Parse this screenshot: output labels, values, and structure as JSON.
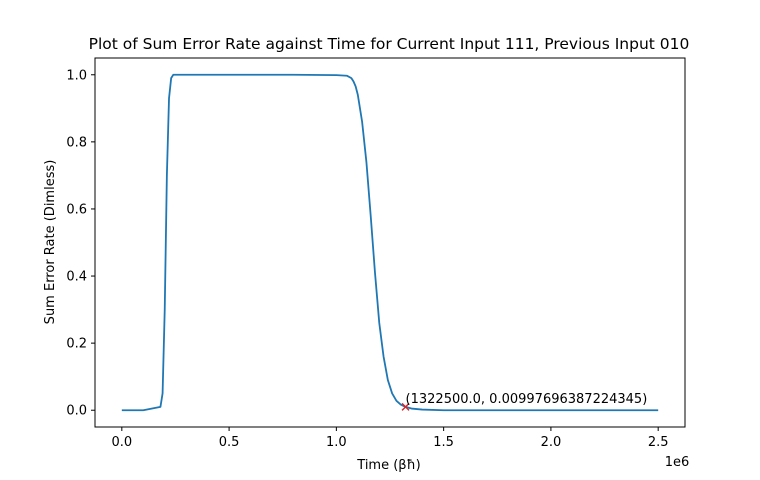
{
  "chart_data": {
    "type": "line",
    "title": "Plot of Sum Error Rate against Time for Current Input 111, Previous Input 010",
    "xlabel": "Time (βħ)",
    "ylabel": "Sum Error Rate (Dimless)",
    "x_offset_label": "1e6",
    "x_scale": 1000000,
    "xlim": [
      -125000,
      2625000
    ],
    "ylim": [
      -0.05,
      1.05
    ],
    "xticks": [
      0,
      500000,
      1000000,
      1500000,
      2000000,
      2500000
    ],
    "xtick_labels": [
      "0.0",
      "0.5",
      "1.0",
      "1.5",
      "2.0",
      "2.5"
    ],
    "yticks": [
      0.0,
      0.2,
      0.4,
      0.6,
      0.8,
      1.0
    ],
    "ytick_labels": [
      "0.0",
      "0.2",
      "0.4",
      "0.6",
      "0.8",
      "1.0"
    ],
    "grid": false,
    "series": [
      {
        "color": "#1f77b4",
        "x": [
          0,
          100000,
          180000,
          190000,
          200000,
          210000,
          220000,
          230000,
          240000,
          300000,
          500000,
          800000,
          1000000,
          1050000,
          1070000,
          1080000,
          1090000,
          1100000,
          1120000,
          1140000,
          1160000,
          1180000,
          1200000,
          1220000,
          1240000,
          1260000,
          1280000,
          1300000,
          1322500,
          1350000,
          1400000,
          1500000,
          2000000,
          2500000
        ],
        "y": [
          0.0,
          0.0,
          0.01,
          0.05,
          0.3,
          0.7,
          0.93,
          0.99,
          1.0,
          1.0,
          1.0,
          1.0,
          0.999,
          0.997,
          0.99,
          0.98,
          0.965,
          0.94,
          0.86,
          0.74,
          0.58,
          0.41,
          0.26,
          0.16,
          0.09,
          0.05,
          0.028,
          0.017,
          0.00998,
          0.005,
          0.002,
          0.0,
          0.0,
          0.0
        ]
      }
    ],
    "marker": {
      "x": 1322500.0,
      "y": 0.00997696387224345,
      "symbol": "x",
      "color": "#d62728",
      "label": "(1322500.0, 0.00997696387224345)"
    }
  }
}
